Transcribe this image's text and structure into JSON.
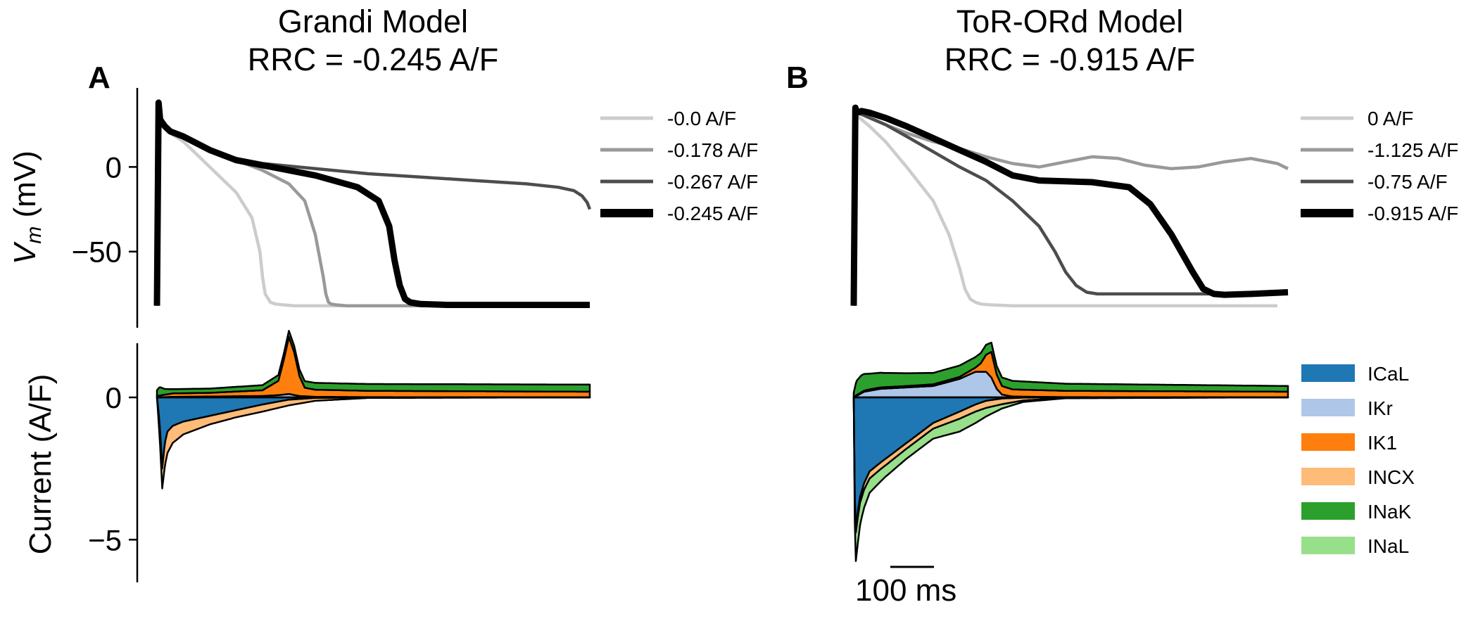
{
  "panels": [
    {
      "letter": "A",
      "title_line1": "Grandi Model",
      "title_line2": "RRC = -0.245 A/F"
    },
    {
      "letter": "B",
      "title_line1": "ToR-ORd Model",
      "title_line2": "RRC = -0.915 A/F"
    }
  ],
  "scale_bar_label": "100 ms",
  "chart_data": [
    {
      "id": "grandi-vm",
      "type": "line",
      "ylabel": "V_m (mV)",
      "ylabel_main": "V",
      "ylabel_sub": "m",
      "ylabel_rest": " (mV)",
      "yticks": [
        0,
        -50
      ],
      "ylim": [
        -90,
        50
      ],
      "xlim": [
        0,
        820
      ],
      "legend_position": "right",
      "series": [
        {
          "name": "-0.0 A/F",
          "color": "#cccccc",
          "width": 4.5,
          "x": [
            0,
            3,
            6,
            15,
            25,
            50,
            80,
            100,
            150,
            180,
            195,
            200,
            205,
            215,
            225,
            240,
            260,
            300,
            400,
            600,
            820
          ],
          "y": [
            -82,
            38,
            28,
            24,
            20,
            15,
            6,
            0,
            -15,
            -30,
            -50,
            -65,
            -75,
            -80,
            -81,
            -81.5,
            -82,
            -82,
            -82,
            -82,
            -82
          ]
        },
        {
          "name": "-0.178 A/F",
          "color": "#999999",
          "width": 4.5,
          "x": [
            0,
            3,
            6,
            15,
            25,
            50,
            100,
            150,
            200,
            250,
            280,
            300,
            315,
            320,
            325,
            330,
            340,
            360,
            400,
            600,
            820
          ],
          "y": [
            -82,
            38,
            28,
            24,
            21,
            17,
            10,
            4,
            -2,
            -10,
            -20,
            -40,
            -65,
            -75,
            -80,
            -81,
            -81.5,
            -82,
            -82,
            -82,
            -82
          ]
        },
        {
          "name": "-0.267 A/F",
          "color": "#4d4d4d",
          "width": 4.5,
          "x": [
            0,
            3,
            6,
            15,
            25,
            50,
            100,
            150,
            200,
            300,
            400,
            500,
            600,
            700,
            760,
            790,
            805,
            815,
            820
          ],
          "y": [
            -82,
            38,
            28,
            24,
            21,
            17,
            10,
            5,
            2,
            -1,
            -4,
            -6,
            -8,
            -10,
            -12,
            -14,
            -17,
            -21,
            -25
          ]
        },
        {
          "name": "-0.245 A/F",
          "color": "#000000",
          "width": 9,
          "x": [
            0,
            3,
            6,
            15,
            25,
            50,
            100,
            150,
            200,
            300,
            380,
            420,
            440,
            450,
            460,
            470,
            480,
            500,
            550,
            820
          ],
          "y": [
            -82,
            38,
            28,
            24,
            21,
            18,
            10,
            4,
            1,
            -5,
            -12,
            -20,
            -35,
            -55,
            -70,
            -78,
            -80,
            -81,
            -81.5,
            -81.5
          ]
        }
      ]
    },
    {
      "id": "tor-vm",
      "type": "line",
      "ylim": [
        -90,
        50
      ],
      "xlim": [
        0,
        820
      ],
      "legend_position": "right",
      "series": [
        {
          "name": "0 A/F",
          "color": "#cccccc",
          "width": 4.5,
          "x": [
            0,
            3,
            6,
            15,
            30,
            60,
            100,
            150,
            180,
            200,
            210,
            220,
            230,
            240,
            260,
            300,
            400,
            600,
            800
          ],
          "y": [
            -82,
            35,
            30,
            28,
            24,
            15,
            0,
            -20,
            -40,
            -60,
            -72,
            -78,
            -80,
            -81,
            -81.5,
            -82,
            -82,
            -82,
            -82
          ]
        },
        {
          "name": "-1.125 A/F",
          "color": "#999999",
          "width": 4.5,
          "x": [
            0,
            3,
            6,
            15,
            30,
            60,
            100,
            150,
            200,
            250,
            300,
            350,
            400,
            450,
            500,
            550,
            600,
            650,
            700,
            750,
            800,
            820
          ],
          "y": [
            -82,
            35,
            32,
            31,
            29,
            25,
            20,
            15,
            11,
            6,
            2,
            0,
            3,
            6,
            5,
            1,
            -1,
            0,
            3,
            5,
            2,
            -1
          ]
        },
        {
          "name": "-0.75 A/F",
          "color": "#4d4d4d",
          "width": 4.5,
          "x": [
            0,
            3,
            6,
            15,
            30,
            60,
            100,
            150,
            200,
            250,
            300,
            350,
            380,
            400,
            420,
            440,
            460,
            480,
            500,
            600,
            700,
            820
          ],
          "y": [
            -82,
            35,
            32,
            31,
            29,
            25,
            18,
            9,
            0,
            -8,
            -20,
            -35,
            -50,
            -62,
            -70,
            -74,
            -75,
            -75,
            -75,
            -75,
            -75,
            -74
          ]
        },
        {
          "name": "-0.915 A/F",
          "color": "#000000",
          "width": 9,
          "x": [
            0,
            3,
            6,
            15,
            30,
            60,
            100,
            150,
            200,
            250,
            300,
            350,
            450,
            520,
            560,
            600,
            640,
            660,
            680,
            700,
            750,
            820
          ],
          "y": [
            -82,
            35,
            32,
            33,
            32,
            29,
            24,
            17,
            10,
            3,
            -5,
            -8,
            -9,
            -12,
            -22,
            -40,
            -62,
            -72,
            -75,
            -75.5,
            -75,
            -74
          ]
        }
      ]
    },
    {
      "id": "grandi-currents",
      "type": "area",
      "ylabel": "Current (A/F)",
      "yticks": [
        0,
        -5
      ],
      "ylim": [
        -6.5,
        2.2
      ],
      "xlim": [
        0,
        820
      ],
      "legend_position": "right",
      "categories_colors": {
        "ICaL": "#1f77b4",
        "IKr": "#aec7e8",
        "IK1": "#ff7f0e",
        "INCX": "#ffbb78",
        "INaK": "#2ca02c",
        "INaL": "#98df8a"
      },
      "series": [
        {
          "name": "IKr",
          "x": [
            0,
            30,
            100,
            200,
            230,
            250,
            270,
            300,
            400,
            820
          ],
          "values": [
            0,
            0.02,
            0.03,
            0.05,
            0.08,
            0.12,
            0.05,
            0.02,
            0.01,
            0
          ]
        },
        {
          "name": "IK1",
          "x": [
            0,
            30,
            100,
            200,
            230,
            240,
            250,
            260,
            270,
            280,
            300,
            400,
            820
          ],
          "values": [
            0.05,
            0.12,
            0.13,
            0.2,
            0.5,
            1.2,
            2.0,
            1.5,
            0.7,
            0.3,
            0.25,
            0.22,
            0.2
          ]
        },
        {
          "name": "INaK",
          "x": [
            0,
            5,
            15,
            30,
            100,
            200,
            250,
            300,
            400,
            820
          ],
          "values": [
            0.2,
            0.3,
            0.2,
            0.15,
            0.15,
            0.18,
            0.22,
            0.24,
            0.24,
            0.25
          ]
        },
        {
          "name": "ICaL",
          "x": [
            0,
            3,
            6,
            10,
            15,
            20,
            30,
            50,
            100,
            150,
            200,
            250,
            300,
            400,
            820
          ],
          "values": [
            0,
            -0.5,
            -1.2,
            -2.5,
            -1.6,
            -1.2,
            -1.0,
            -0.85,
            -0.65,
            -0.45,
            -0.25,
            -0.08,
            -0.02,
            0,
            0
          ]
        },
        {
          "name": "INCX",
          "x": [
            0,
            3,
            6,
            10,
            15,
            20,
            30,
            50,
            100,
            150,
            200,
            250,
            300,
            400,
            820
          ],
          "values": [
            0,
            -0.3,
            -0.5,
            -0.7,
            -0.8,
            -0.75,
            -0.6,
            -0.45,
            -0.3,
            -0.25,
            -0.25,
            -0.2,
            -0.1,
            -0.02,
            0
          ]
        }
      ]
    },
    {
      "id": "tor-currents",
      "type": "area",
      "ylim": [
        -6.5,
        2.2
      ],
      "xlim": [
        0,
        820
      ],
      "legend_position": "right",
      "legend": [
        "ICaL",
        "IKr",
        "IK1",
        "INCX",
        "INaK",
        "INaL"
      ],
      "series": [
        {
          "name": "IKr",
          "x": [
            0,
            20,
            50,
            100,
            150,
            200,
            230,
            250,
            260,
            270,
            280,
            300,
            400,
            820
          ],
          "values": [
            0,
            0.2,
            0.3,
            0.35,
            0.4,
            0.65,
            0.9,
            0.9,
            0.7,
            0.3,
            0.1,
            0.03,
            0.01,
            0
          ]
        },
        {
          "name": "IK1",
          "x": [
            0,
            30,
            100,
            200,
            230,
            240,
            250,
            260,
            270,
            280,
            300,
            400,
            820
          ],
          "values": [
            0.02,
            0.05,
            0.05,
            0.07,
            0.15,
            0.3,
            0.6,
            0.9,
            0.5,
            0.3,
            0.25,
            0.22,
            0.2
          ]
        },
        {
          "name": "INaK",
          "x": [
            0,
            5,
            15,
            30,
            60,
            100,
            150,
            200,
            250,
            270,
            300,
            400,
            820
          ],
          "values": [
            0.15,
            0.5,
            0.6,
            0.55,
            0.5,
            0.45,
            0.4,
            0.4,
            0.35,
            0.3,
            0.3,
            0.25,
            0.2
          ]
        },
        {
          "name": "ICaL",
          "x": [
            0,
            2,
            4,
            8,
            12,
            20,
            30,
            50,
            100,
            150,
            200,
            230,
            250,
            280,
            320,
            400,
            820
          ],
          "values": [
            0,
            -3.5,
            -4.6,
            -4.0,
            -3.5,
            -3.0,
            -2.6,
            -2.3,
            -1.6,
            -0.9,
            -0.5,
            -0.25,
            -0.12,
            -0.04,
            -0.01,
            0,
            0
          ]
        },
        {
          "name": "INCX",
          "x": [
            0,
            4,
            10,
            30,
            100,
            150,
            200,
            230,
            250,
            280,
            320,
            400,
            820
          ],
          "values": [
            0,
            -0.15,
            -0.2,
            -0.25,
            -0.2,
            -0.2,
            -0.25,
            -0.25,
            -0.25,
            -0.2,
            -0.1,
            -0.02,
            0
          ]
        },
        {
          "name": "INaL",
          "x": [
            0,
            2,
            4,
            8,
            15,
            30,
            60,
            100,
            150,
            200,
            230,
            250,
            280,
            320,
            400,
            820
          ],
          "values": [
            0,
            -0.8,
            -1.0,
            -0.9,
            -0.7,
            -0.5,
            -0.4,
            -0.35,
            -0.35,
            -0.45,
            -0.4,
            -0.3,
            -0.15,
            -0.05,
            -0.01,
            0
          ]
        }
      ]
    }
  ]
}
